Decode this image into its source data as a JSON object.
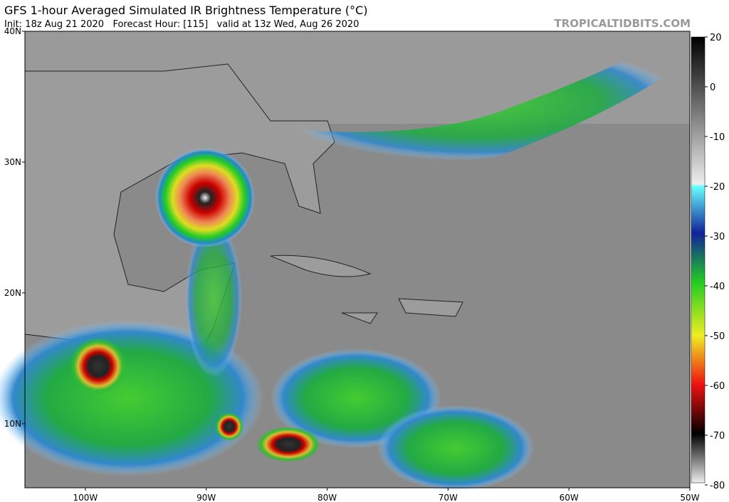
{
  "header": {
    "title": "GFS 1-hour Averaged Simulated IR Brightness Temperature (°C)",
    "subtitle": "Init: 18z Aug 21 2020   Forecast Hour: [115]   valid at 13z Wed, Aug 26 2020",
    "watermark": "TROPICALTIDBITS.COM"
  },
  "map": {
    "lon_range": [
      -105,
      -50
    ],
    "lat_range": [
      5.1,
      40
    ],
    "lat_ticks": [
      {
        "value": 40,
        "label": "40N"
      },
      {
        "value": 30,
        "label": "30N"
      },
      {
        "value": 20,
        "label": "20N"
      },
      {
        "value": 10,
        "label": "10N"
      }
    ],
    "lon_ticks": [
      {
        "value": -100,
        "label": "100W"
      },
      {
        "value": -90,
        "label": "90W"
      },
      {
        "value": -80,
        "label": "80W"
      },
      {
        "value": -70,
        "label": "70W"
      },
      {
        "value": -60,
        "label": "60W"
      },
      {
        "value": -50,
        "label": "50W"
      }
    ]
  },
  "colorbar": {
    "range": [
      -80,
      20
    ],
    "ticks": [
      20,
      0,
      -10,
      -20,
      -30,
      -40,
      -50,
      -60,
      -70,
      -80
    ]
  }
}
